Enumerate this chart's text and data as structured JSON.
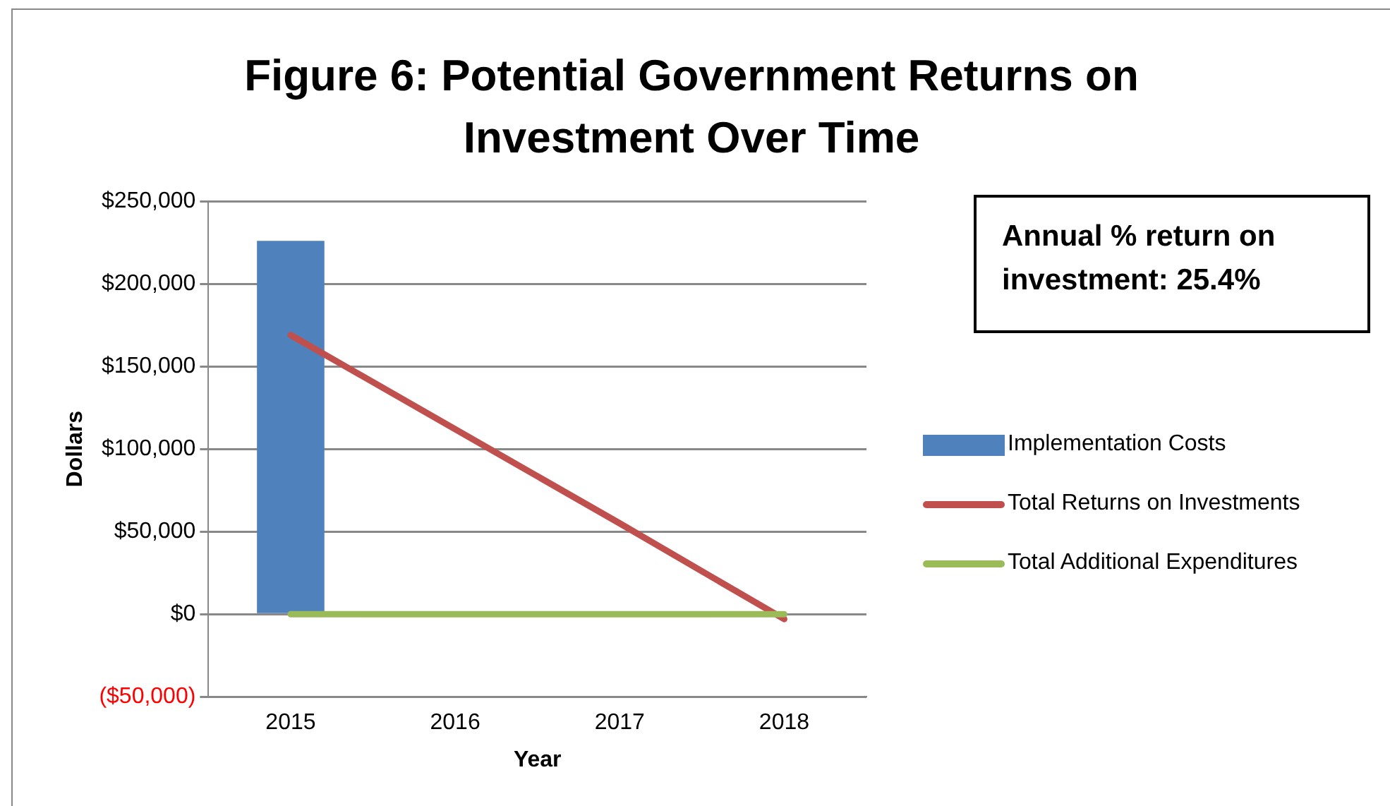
{
  "chart_data": {
    "type": "bar",
    "title": "Figure 6: Potential Government Returns on Investment Over Time",
    "xlabel": "Year",
    "ylabel": "Dollars",
    "categories": [
      "2015",
      "2016",
      "2017",
      "2018"
    ],
    "series": [
      {
        "name": "Implementation Costs",
        "color": "#4f81bd",
        "values": [
          226000,
          null,
          null,
          null
        ]
      },
      {
        "name": "Total Returns on Investments",
        "type": "line",
        "color": "#c0504d",
        "values": [
          169000,
          112000,
          55000,
          -3000
        ]
      },
      {
        "name": "Total Additional Expenditures",
        "type": "line",
        "color": "#9bbb59",
        "values": [
          0,
          0,
          0,
          0
        ]
      }
    ],
    "ylim": [
      -50000,
      250000
    ],
    "yticks": [
      {
        "value": -50000,
        "label": "($50,000)"
      },
      {
        "value": 0,
        "label": "$0"
      },
      {
        "value": 50000,
        "label": "$50,000"
      },
      {
        "value": 100000,
        "label": "$100,000"
      },
      {
        "value": 150000,
        "label": "$150,000"
      },
      {
        "value": 200000,
        "label": "$200,000"
      },
      {
        "value": 250000,
        "label": "$250,000"
      }
    ],
    "grid": "y",
    "legend": "right",
    "marker": "none",
    "annotations": [
      "Annual % return on investment: 25.4%"
    ]
  }
}
